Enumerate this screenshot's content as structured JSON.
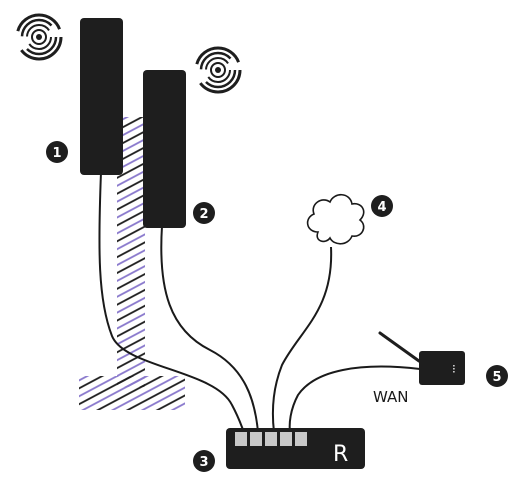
{
  "colors": {
    "device": "#1e1e1e",
    "cable": "#1a1a1a",
    "hatch_dark": "#1c1c1c",
    "hatch_accent": "#8877cc",
    "port": "#c8c8c8",
    "background": "#ffffff"
  },
  "callouts": [
    {
      "number": "1"
    },
    {
      "number": "2"
    },
    {
      "number": "3"
    },
    {
      "number": "4"
    },
    {
      "number": "5"
    }
  ],
  "router": {
    "letter": "R"
  },
  "modem": {
    "label": "WAN",
    "indicator": "⁝"
  },
  "icons": {
    "signal_1": "wireless-signal-icon",
    "signal_2": "wireless-signal-icon",
    "cloud": "cloud-icon",
    "antenna": "antenna-icon"
  }
}
